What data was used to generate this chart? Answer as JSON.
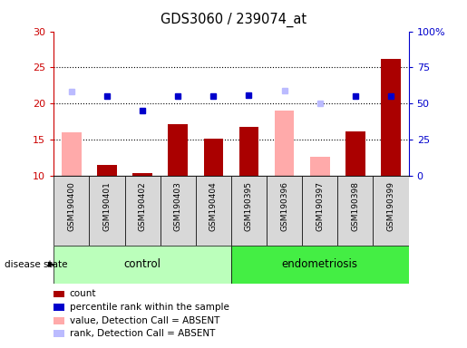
{
  "title": "GDS3060 / 239074_at",
  "samples": [
    "GSM190400",
    "GSM190401",
    "GSM190402",
    "GSM190403",
    "GSM190404",
    "GSM190395",
    "GSM190396",
    "GSM190397",
    "GSM190398",
    "GSM190399"
  ],
  "count_values": [
    null,
    11.5,
    10.4,
    17.1,
    15.1,
    16.8,
    null,
    null,
    16.1,
    26.2
  ],
  "value_absent": [
    16.0,
    null,
    null,
    null,
    null,
    null,
    19.0,
    12.6,
    null,
    null
  ],
  "rank_absent": [
    21.6,
    null,
    null,
    null,
    null,
    null,
    21.8,
    20.0,
    null,
    null
  ],
  "percentile_rank": [
    null,
    21.0,
    19.0,
    21.0,
    21.0,
    21.2,
    null,
    null,
    21.0,
    21.0
  ],
  "ylim_left": [
    10,
    30
  ],
  "ylim_right": [
    0,
    100
  ],
  "yticks_left": [
    10,
    15,
    20,
    25,
    30
  ],
  "ytick_labels_right": [
    "0",
    "25",
    "50",
    "75",
    "100%"
  ],
  "left_axis_color": "#cc0000",
  "right_axis_color": "#0000cc",
  "bar_color": "#aa0000",
  "color_absent_value": "#ffaaaa",
  "color_absent_rank": "#bbbbff",
  "color_percentile": "#0000cc",
  "legend_items": [
    {
      "label": "count",
      "color": "#aa0000"
    },
    {
      "label": "percentile rank within the sample",
      "color": "#0000cc"
    },
    {
      "label": "value, Detection Call = ABSENT",
      "color": "#ffaaaa"
    },
    {
      "label": "rank, Detection Call = ABSENT",
      "color": "#bbbbff"
    }
  ],
  "group_defs": [
    {
      "name": "control",
      "start": 0,
      "end": 4,
      "color": "#bbffbb"
    },
    {
      "name": "endometriosis",
      "start": 5,
      "end": 9,
      "color": "#44ee44"
    }
  ]
}
